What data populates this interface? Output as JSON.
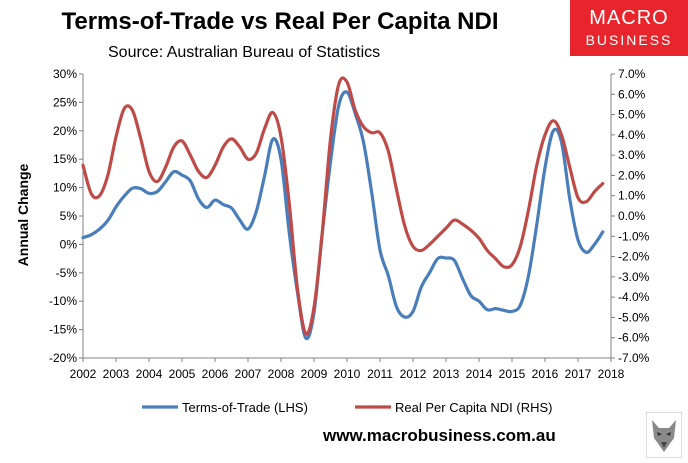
{
  "header": {
    "title": "Terms-of-Trade vs Real Per Capita NDI",
    "subtitle": "Source: Australian Bureau of Statistics",
    "logo_line1": "MACRO",
    "logo_line2": "BUSINESS"
  },
  "footer": {
    "website": "www.macrobusiness.com.au"
  },
  "colors": {
    "tot": "#4a7ebb",
    "ndi": "#be4b48",
    "logo_bg": "#e8252c"
  },
  "chart_data": {
    "type": "line",
    "title": "Terms-of-Trade vs Real Per Capita NDI",
    "ylabel": "Annual Change",
    "x_ticks": [
      "2002",
      "2003",
      "2004",
      "2005",
      "2006",
      "2007",
      "2008",
      "2009",
      "2010",
      "2011",
      "2012",
      "2013",
      "2014",
      "2015",
      "2016",
      "2017",
      "2018"
    ],
    "xlim": [
      2002,
      2018
    ],
    "y_left": {
      "lim": [
        -20,
        30
      ],
      "ticks": [
        "-20%",
        "-15%",
        "-10%",
        "-5%",
        "0%",
        "5%",
        "10%",
        "15%",
        "20%",
        "25%",
        "30%"
      ]
    },
    "y_right": {
      "lim": [
        -7,
        7
      ],
      "ticks": [
        "-7.0%",
        "-6.0%",
        "-5.0%",
        "-4.0%",
        "-3.0%",
        "-2.0%",
        "-1.0%",
        "0.0%",
        "1.0%",
        "2.0%",
        "3.0%",
        "4.0%",
        "5.0%",
        "6.0%",
        "7.0%"
      ]
    },
    "grid": false,
    "legend_position": "bottom",
    "series": [
      {
        "name": "Terms-of-Trade (LHS)",
        "axis": "left",
        "x": [
          2002.0,
          2002.25,
          2002.5,
          2002.75,
          2003.0,
          2003.25,
          2003.5,
          2003.75,
          2004.0,
          2004.25,
          2004.5,
          2004.75,
          2005.0,
          2005.25,
          2005.5,
          2005.75,
          2006.0,
          2006.25,
          2006.5,
          2006.75,
          2007.0,
          2007.25,
          2007.5,
          2007.75,
          2008.0,
          2008.25,
          2008.5,
          2008.75,
          2009.0,
          2009.25,
          2009.5,
          2009.75,
          2010.0,
          2010.25,
          2010.5,
          2010.75,
          2011.0,
          2011.25,
          2011.5,
          2011.75,
          2012.0,
          2012.25,
          2012.5,
          2012.75,
          2013.0,
          2013.25,
          2013.5,
          2013.75,
          2014.0,
          2014.25,
          2014.5,
          2014.75,
          2015.0,
          2015.25,
          2015.5,
          2015.75,
          2016.0,
          2016.25,
          2016.5,
          2016.75,
          2017.0,
          2017.25,
          2017.5,
          2017.75
        ],
        "values": [
          1.2,
          1.7,
          2.7,
          4.2,
          6.6,
          8.5,
          9.9,
          9.8,
          9.0,
          9.3,
          11.0,
          12.8,
          12.2,
          11.2,
          8.0,
          6.5,
          7.8,
          7.0,
          6.4,
          4.3,
          2.7,
          5.8,
          12.0,
          18.5,
          15.0,
          2.0,
          -8.5,
          -16.5,
          -12.0,
          2.0,
          14.5,
          24.5,
          26.8,
          23.0,
          18.0,
          9.0,
          -1.0,
          -5.5,
          -11.0,
          -12.8,
          -11.8,
          -7.5,
          -5.0,
          -2.5,
          -2.4,
          -2.8,
          -6.0,
          -9.0,
          -10.0,
          -11.5,
          -11.3,
          -11.6,
          -11.8,
          -10.7,
          -5.5,
          3.5,
          13.5,
          20.0,
          18.0,
          8.0,
          0.8,
          -1.4,
          0.0,
          2.2
        ]
      },
      {
        "name": "Real Per Capita NDI (RHS)",
        "axis": "right",
        "x": [
          2002.0,
          2002.25,
          2002.5,
          2002.75,
          2003.0,
          2003.25,
          2003.5,
          2003.75,
          2004.0,
          2004.25,
          2004.5,
          2004.75,
          2005.0,
          2005.25,
          2005.5,
          2005.75,
          2006.0,
          2006.25,
          2006.5,
          2006.75,
          2007.0,
          2007.25,
          2007.5,
          2007.75,
          2008.0,
          2008.25,
          2008.5,
          2008.75,
          2009.0,
          2009.25,
          2009.5,
          2009.75,
          2010.0,
          2010.25,
          2010.5,
          2010.75,
          2011.0,
          2011.25,
          2011.5,
          2011.75,
          2012.0,
          2012.25,
          2012.5,
          2012.75,
          2013.0,
          2013.25,
          2013.5,
          2013.75,
          2014.0,
          2014.25,
          2014.5,
          2014.75,
          2015.0,
          2015.25,
          2015.5,
          2015.75,
          2016.0,
          2016.25,
          2016.5,
          2016.75,
          2017.0,
          2017.25,
          2017.5,
          2017.75
        ],
        "values": [
          2.5,
          1.1,
          1.0,
          2.0,
          3.9,
          5.3,
          5.2,
          3.8,
          2.2,
          1.7,
          2.4,
          3.4,
          3.7,
          3.0,
          2.2,
          1.9,
          2.5,
          3.4,
          3.8,
          3.4,
          2.8,
          3.1,
          4.3,
          5.1,
          3.9,
          0.6,
          -3.6,
          -5.8,
          -4.5,
          -0.8,
          3.8,
          6.5,
          6.6,
          5.2,
          4.4,
          4.1,
          4.1,
          3.2,
          1.3,
          -0.5,
          -1.5,
          -1.7,
          -1.4,
          -1.0,
          -0.6,
          -0.2,
          -0.4,
          -0.7,
          -1.1,
          -1.7,
          -2.1,
          -2.5,
          -2.4,
          -1.5,
          0.3,
          2.5,
          4.0,
          4.7,
          4.0,
          2.4,
          0.9,
          0.7,
          1.2,
          1.6
        ]
      }
    ]
  }
}
